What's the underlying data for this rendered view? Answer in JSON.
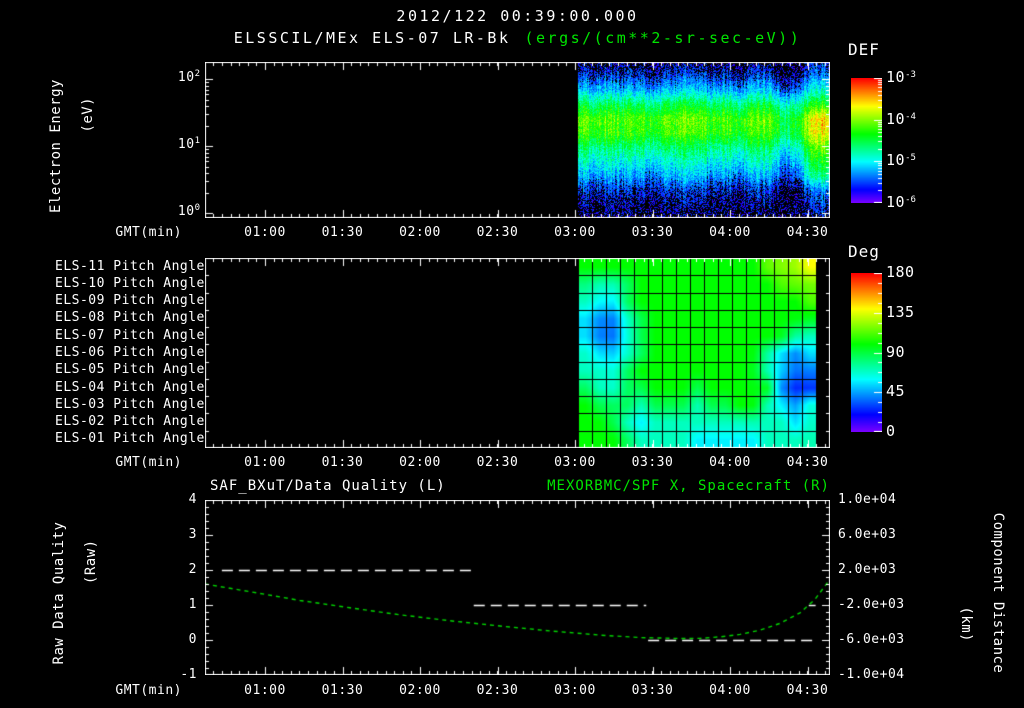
{
  "titles": {
    "datetime": "2012/122 00:39:00.000",
    "instrument": "ELSSCIL/MEx ELS-07 LR-Bk",
    "units": "(ergs/(cm**2-sr-sec-eV))"
  },
  "colors": {
    "background": "#000000",
    "text": "#ffffff",
    "accent_green": "#00e400",
    "curve_green": "#00d400"
  },
  "x_axis": {
    "label": "GMT(min)",
    "tick_labels": [
      "01:00",
      "01:30",
      "02:00",
      "02:30",
      "03:00",
      "03:30",
      "04:00",
      "04:30"
    ],
    "start_time": "00:37",
    "end_time": "04:39"
  },
  "chart_data": [
    {
      "id": "electron-energy-spectrogram",
      "type": "heatmap",
      "ylabel_line1": "Electron Energy",
      "ylabel_line2": "(eV)",
      "y_scale": "log",
      "y_ticks": [
        {
          "base": "10",
          "exp": "2"
        },
        {
          "base": "10",
          "exp": "1"
        },
        {
          "base": "10",
          "exp": "0"
        }
      ],
      "y_range_log10": [
        -0.07,
        2.26
      ],
      "colorbar": {
        "title": "DEF",
        "ticks": [
          {
            "base": "10",
            "exp": "-3"
          },
          {
            "base": "10",
            "exp": "-4"
          },
          {
            "base": "10",
            "exp": "-5"
          },
          {
            "base": "10",
            "exp": "-6"
          }
        ],
        "range_log10": [
          -6,
          -3
        ]
      },
      "data_window": {
        "x_start_frac": 0.597,
        "x_end_frac": 0.997,
        "start_time": "03:02",
        "end_time": "04:38"
      },
      "row_base_log10_flux": [
        -5.85,
        -5.55,
        -5.15,
        -4.55,
        -4.15,
        -4.25,
        -4.65,
        -4.95,
        -5.25,
        -5.6,
        -5.8,
        -5.95
      ],
      "col_flux_modulation": [
        0.1,
        0,
        0.1,
        -0.05,
        0.05,
        -0.15,
        0,
        0.05,
        0.1,
        -0.05,
        0,
        -0.1,
        0.05,
        0.1,
        -0.35,
        -0.15,
        0.3,
        0.35
      ],
      "bright_block": {
        "rows": [
          4,
          8
        ],
        "cols": [
          16,
          17
        ],
        "boost": 0.3
      },
      "noise_amplitude": 0.5
    },
    {
      "id": "pitch-angle-panel",
      "type": "heatmap",
      "row_labels": [
        "ELS-11 Pitch Angle",
        "ELS-10 Pitch Angle",
        "ELS-09 Pitch Angle",
        "ELS-08 Pitch Angle",
        "ELS-07 Pitch Angle",
        "ELS-06 Pitch Angle",
        "ELS-05 Pitch Angle",
        "ELS-04 Pitch Angle",
        "ELS-03 Pitch Angle",
        "ELS-02 Pitch Angle",
        "ELS-01 Pitch Angle"
      ],
      "colorbar": {
        "title": "Deg",
        "ticks": [
          180,
          135,
          90,
          45,
          0
        ],
        "range": [
          0,
          180
        ]
      },
      "data_window": {
        "x_start_frac": 0.597,
        "x_end_frac": 0.978,
        "columns": 17,
        "start_time": "03:02",
        "end_time": "04:32"
      },
      "values_deg": [
        [
          100,
          100,
          100,
          100,
          100,
          100,
          100,
          100,
          100,
          100,
          100,
          100,
          100,
          115,
          120,
          125,
          140
        ],
        [
          80,
          72,
          72,
          85,
          100,
          100,
          100,
          100,
          100,
          100,
          100,
          100,
          100,
          100,
          112,
          115,
          118
        ],
        [
          70,
          60,
          58,
          85,
          100,
          100,
          100,
          100,
          100,
          100,
          100,
          100,
          100,
          100,
          100,
          100,
          112
        ],
        [
          55,
          42,
          40,
          68,
          88,
          100,
          100,
          100,
          100,
          100,
          100,
          100,
          100,
          100,
          100,
          98,
          95
        ],
        [
          55,
          40,
          38,
          66,
          88,
          100,
          100,
          100,
          100,
          100,
          100,
          100,
          100,
          100,
          95,
          75,
          70
        ],
        [
          68,
          55,
          52,
          68,
          85,
          100,
          100,
          100,
          100,
          100,
          100,
          100,
          98,
          75,
          55,
          42,
          55
        ],
        [
          70,
          68,
          66,
          85,
          100,
          100,
          100,
          100,
          100,
          100,
          100,
          100,
          95,
          72,
          52,
          38,
          40
        ],
        [
          85,
          70,
          68,
          85,
          88,
          100,
          100,
          100,
          88,
          100,
          100,
          100,
          98,
          95,
          42,
          26,
          28
        ],
        [
          100,
          88,
          85,
          85,
          72,
          88,
          88,
          88,
          72,
          88,
          88,
          100,
          98,
          72,
          58,
          45,
          65
        ],
        [
          100,
          100,
          88,
          70,
          58,
          70,
          70,
          70,
          70,
          70,
          70,
          70,
          72,
          70,
          70,
          55,
          68
        ],
        [
          100,
          100,
          100,
          85,
          70,
          70,
          70,
          70,
          58,
          58,
          58,
          58,
          58,
          70,
          70,
          70,
          72
        ]
      ]
    },
    {
      "id": "quality-and-distance",
      "type": "line",
      "title_left": "SAF_BXuT/Data Quality (L)",
      "title_right": "MEXORBMC/SPF X, Spacecraft (R)",
      "ylabel_left_line1": "Raw Data Quality",
      "ylabel_left_line2": "(Raw)",
      "ylabel_right_line1": "Component Distance",
      "ylabel_right_line2": "(km)",
      "yleft_ticks": [
        4,
        3,
        2,
        1,
        0,
        -1
      ],
      "yleft_range": [
        -1,
        4
      ],
      "yright_ticks": [
        "1.0e+04",
        "6.0e+03",
        "2.0e+03",
        "-2.0e+03",
        "-6.0e+03",
        "-1.0e+04"
      ],
      "yright_range": [
        -10000,
        10000
      ],
      "series": [
        {
          "name": "SAF_BXuT/Data Quality",
          "axis": "left",
          "style": "dashed-white",
          "segments": [
            {
              "value": 2,
              "from_frac": 0.027,
              "to_frac": 0.427,
              "from_time": "00:43",
              "to_time": "02:20"
            },
            {
              "value": 1,
              "from_frac": 0.43,
              "to_frac": 0.706,
              "from_time": "02:21",
              "to_time": "03:27"
            },
            {
              "value": 0,
              "from_frac": 0.709,
              "to_frac": 0.973,
              "from_time": "03:28",
              "to_time": "04:32"
            },
            {
              "value": 1,
              "from_frac": 0.966,
              "to_frac": 0.977,
              "from_time": "04:31",
              "to_time": "04:32"
            }
          ]
        },
        {
          "name": "MEXORBMC/SPF X Spacecraft",
          "axis": "right",
          "style": "dashed-green",
          "points_frac": [
            0.0,
            0.072,
            0.152,
            0.232,
            0.312,
            0.392,
            0.472,
            0.552,
            0.632,
            0.696,
            0.76,
            0.792,
            0.824,
            0.856,
            0.888,
            0.92,
            0.952,
            0.976,
            1.0
          ],
          "points_km": [
            400,
            -480,
            -1480,
            -2320,
            -3120,
            -3800,
            -4400,
            -4960,
            -5440,
            -5720,
            -5830,
            -5810,
            -5640,
            -5360,
            -4880,
            -4100,
            -2900,
            -1350,
            950
          ]
        }
      ]
    }
  ]
}
